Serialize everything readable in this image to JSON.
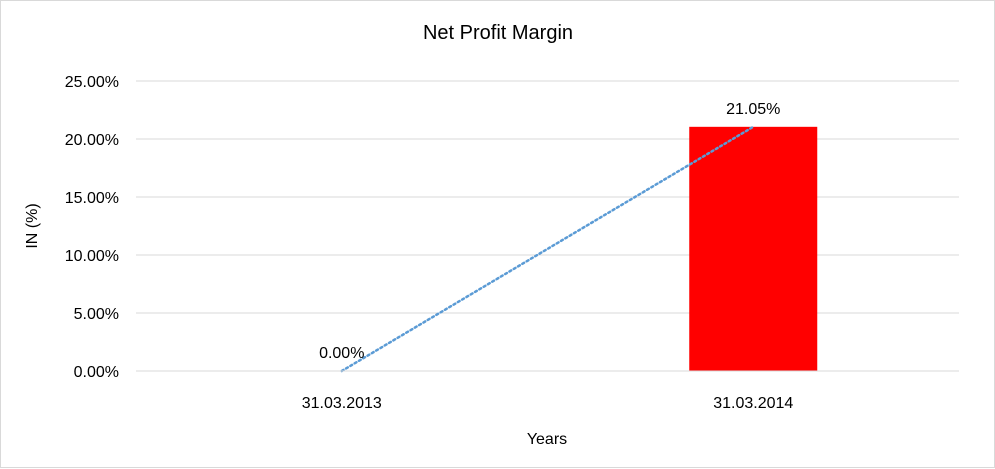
{
  "chart_data": {
    "type": "bar",
    "title": "Net Profit Margin",
    "xlabel": "Years",
    "ylabel": "IN (%)",
    "categories": [
      "31.03.2013",
      "31.03.2014"
    ],
    "series": [
      {
        "values": [
          0.0,
          21.05
        ],
        "color": "#ff0000"
      }
    ],
    "data_labels": [
      "0.00%",
      "21.05%"
    ],
    "ylim": [
      0,
      25
    ],
    "yticks": [
      0,
      5,
      10,
      15,
      20,
      25
    ],
    "ytick_labels": [
      "0.00%",
      "5.00%",
      "10.00%",
      "15.00%",
      "20.00%",
      "25.00%"
    ],
    "trendline": {
      "type": "linear",
      "style": "dotted",
      "color": "#5b9bd5"
    },
    "grid": true,
    "legend": "none"
  }
}
